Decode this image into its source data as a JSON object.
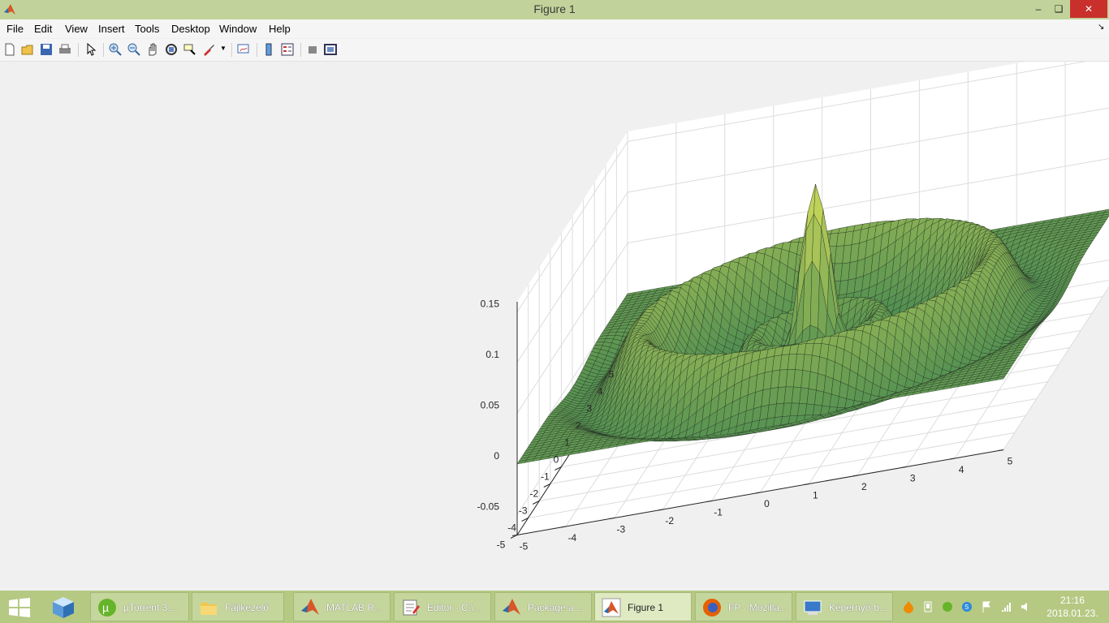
{
  "window": {
    "title": "Figure 1",
    "controls": {
      "minimize": "–",
      "maximize": "❏",
      "close": "✕"
    }
  },
  "menu": [
    "File",
    "Edit",
    "View",
    "Insert",
    "Tools",
    "Desktop",
    "Window",
    "Help"
  ],
  "toolbar_icons": [
    "new-figure-icon",
    "open-file-icon",
    "save-icon",
    "print-icon",
    "edit-plot-icon",
    "zoom-in-icon",
    "zoom-out-icon",
    "pan-icon",
    "rotate-3d-icon",
    "data-cursor-icon",
    "brush-icon",
    "link-plot-icon",
    "colorbar-icon",
    "legend-icon",
    "hide-plot-tools-icon",
    "show-plot-tools-icon"
  ],
  "chart_data": {
    "type": "surface",
    "function": "sinc-like radial ripples (sin r / r) centered at origin, damped toward edges",
    "x_ticks": [
      "-5",
      "-4",
      "-3",
      "-2",
      "-1",
      "0",
      "1",
      "2",
      "3",
      "4",
      "5"
    ],
    "y_ticks": [
      "-5",
      "-4",
      "-3",
      "-2",
      "-1",
      "0",
      "1",
      "2",
      "3",
      "4",
      "5"
    ],
    "z_ticks": [
      "-0.05",
      "0",
      "0.05",
      "0.1",
      "0.15"
    ],
    "xlim": [
      -5,
      5
    ],
    "ylim": [
      -5,
      5
    ],
    "zlim": [
      -0.07,
      0.16
    ],
    "peak": {
      "x": 0,
      "y": 0,
      "z": 0.15
    },
    "colormap": "summer",
    "grid": true,
    "colors": {
      "face": "#5fae6c",
      "face_light": "#8fcf7a",
      "edge": "#1e2a1e"
    }
  },
  "taskbar": {
    "items": [
      {
        "name": "task-utorrent",
        "label": "µTorrent 3...."
      },
      {
        "name": "task-file-explorer",
        "label": "Fájlkezelő"
      },
      {
        "name": "task-matlab",
        "label": "MATLAB R..."
      },
      {
        "name": "task-editor",
        "label": "Editor - C:\\..."
      },
      {
        "name": "task-package",
        "label": "Package a ..."
      },
      {
        "name": "task-figure1",
        "label": "Figure 1"
      },
      {
        "name": "task-firefox",
        "label": "FP - Mozilla..."
      },
      {
        "name": "task-screenshot",
        "label": "Képernyő-b..."
      }
    ],
    "clock": {
      "time": "21:16",
      "date": "2018.01.23."
    }
  }
}
